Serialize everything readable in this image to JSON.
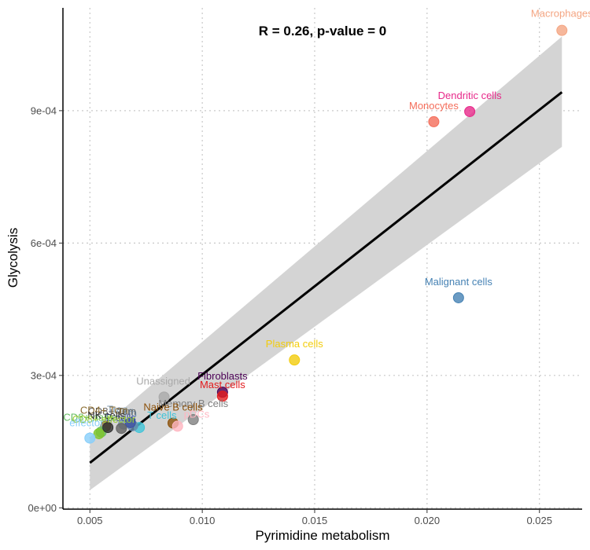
{
  "chart_data": {
    "type": "scatter",
    "xlabel": "Pyrimidine metabolism",
    "ylabel": "Glycolysis",
    "annotation": "R = 0.26, p-value = 0",
    "xlim": [
      0.0038,
      0.0269
    ],
    "ylim": [
      -3e-06,
      0.001133
    ],
    "x_ticks": [
      0.005,
      0.01,
      0.015,
      0.02,
      0.025
    ],
    "x_tick_labels": [
      "0.005",
      "0.010",
      "0.015",
      "0.020",
      "0.025"
    ],
    "y_ticks": [
      0,
      0.0003,
      0.0006,
      0.0009
    ],
    "y_tick_labels": [
      "0e+00",
      "3e-04",
      "6e-04",
      "9e-04"
    ],
    "grid": true,
    "regression": {
      "x": [
        0.005,
        0.026
      ],
      "y": [
        0.000102,
        0.000942
      ],
      "band_lower": [
        4e-05,
        0.000818
      ],
      "band_upper": [
        0.00016,
        0.001068
      ]
    },
    "points": [
      {
        "label": "Macrophages",
        "x": 0.026,
        "y": 0.001082,
        "color": "#F4A582"
      },
      {
        "label": "Dendritic cells",
        "x": 0.0219,
        "y": 0.000898,
        "color": "#E7298A"
      },
      {
        "label": "Monocytes",
        "x": 0.0203,
        "y": 0.000875,
        "color": "#F46D5A"
      },
      {
        "label": "Malignant cells",
        "x": 0.0214,
        "y": 0.000476,
        "color": "#4682B4"
      },
      {
        "label": "Plasma cells",
        "x": 0.0141,
        "y": 0.000335,
        "color": "#F2CC0C"
      },
      {
        "label": "Fibroblasts",
        "x": 0.0109,
        "y": 0.000262,
        "color": "#4B0055"
      },
      {
        "label": "Mast cells",
        "x": 0.0109,
        "y": 0.000253,
        "color": "#E31A1C"
      },
      {
        "label": "Unassigned",
        "x": 0.0083,
        "y": 0.000251,
        "color": "#A9A9A9"
      },
      {
        "label": "Memory B cells",
        "x": 0.0096,
        "y": 0.0002,
        "color": "#7F7F7F"
      },
      {
        "label": "Naive B cells",
        "x": 0.0087,
        "y": 0.000192,
        "color": "#8C510A"
      },
      {
        "label": "pDCs",
        "x": 0.0089,
        "y": 0.000185,
        "color": "#FFB6C1"
      },
      {
        "label": "T cells",
        "x": 0.0072,
        "y": 0.000182,
        "color": "#40C4D8"
      },
      {
        "label": "Tfh",
        "x": 0.0069,
        "y": 0.000186,
        "color": "#6A8EAE"
      },
      {
        "label": "Treg",
        "x": 0.0065,
        "y": 0.00019,
        "color": "#7B9AB5"
      },
      {
        "label": "B cells",
        "x": 0.0068,
        "y": 0.000193,
        "color": "#3A4FA0"
      },
      {
        "label": "CD8+ Tem",
        "x": 0.0064,
        "y": 0.00018,
        "color": "#636363"
      },
      {
        "label": "CD4+ Tcm",
        "x": 0.0057,
        "y": 0.000185,
        "color": "#8C6D31"
      },
      {
        "label": "CD8+ naive",
        "x": 0.0055,
        "y": 0.000172,
        "color": "#66BD63"
      },
      {
        "label": "NK cells",
        "x": 0.0058,
        "y": 0.000182,
        "color": "#2F2F2F"
      },
      {
        "label": "CD8+ effector",
        "x": 0.0054,
        "y": 0.000168,
        "color": "#7FC62B"
      },
      {
        "label": "effector",
        "x": 0.005,
        "y": 0.000158,
        "color": "#87CEFA"
      }
    ],
    "labels": [
      {
        "text": "Macrophages",
        "x": 0.026,
        "y": 0.001082,
        "dx": 0,
        "dy": -17,
        "anchor": "middle",
        "color": "#F4A582"
      },
      {
        "text": "Dendritic cells",
        "x": 0.0219,
        "y": 0.000898,
        "dx": 0,
        "dy": -16,
        "anchor": "middle",
        "color": "#E7298A"
      },
      {
        "text": "Monocytes",
        "x": 0.0203,
        "y": 0.000875,
        "dx": 0,
        "dy": -16,
        "anchor": "middle",
        "color": "#F46D5A"
      },
      {
        "text": "Malignant cells",
        "x": 0.0214,
        "y": 0.000476,
        "dx": 0,
        "dy": -16,
        "anchor": "middle",
        "color": "#4682B4"
      },
      {
        "text": "Plasma cells",
        "x": 0.0141,
        "y": 0.000335,
        "dx": 0,
        "dy": -16,
        "anchor": "middle",
        "color": "#F2CC0C"
      },
      {
        "text": "Fibroblasts",
        "x": 0.0109,
        "y": 0.000262,
        "dx": 0,
        "dy": -16,
        "anchor": "middle",
        "color": "#4B0055"
      },
      {
        "text": "Mast cells",
        "x": 0.0109,
        "y": 0.000253,
        "dx": 0,
        "dy": -10,
        "anchor": "middle",
        "color": "#E31A1C"
      },
      {
        "text": "Unassigned",
        "x": 0.0083,
        "y": 0.000251,
        "dx": -1,
        "dy": -16,
        "anchor": "middle",
        "color": "#A9A9A9"
      },
      {
        "text": "Memory B cells",
        "x": 0.0096,
        "y": 0.0002,
        "dx": 0,
        "dy": -16,
        "anchor": "middle",
        "color": "#7F7F7F"
      },
      {
        "text": "Naive B cells",
        "x": 0.0087,
        "y": 0.000192,
        "dx": 0,
        "dy": -16,
        "anchor": "middle",
        "color": "#8C510A"
      },
      {
        "text": "pDCs",
        "x": 0.0089,
        "y": 0.000185,
        "dx": 8,
        "dy": -11,
        "anchor": "start",
        "color": "#FFB6C1"
      },
      {
        "text": "T cells",
        "x": 0.0072,
        "y": 0.000182,
        "dx": 10,
        "dy": -11,
        "anchor": "start",
        "color": "#40C4D8"
      },
      {
        "text": "Tfh",
        "x": 0.0069,
        "y": 0.000186,
        "dx": -4,
        "dy": -12,
        "anchor": "middle",
        "color": "#6A8EAE"
      },
      {
        "text": "Treg",
        "x": 0.0065,
        "y": 0.00019,
        "dx": -8,
        "dy": -14,
        "anchor": "middle",
        "color": "#7B9AB5"
      },
      {
        "text": "B cells",
        "x": 0.0068,
        "y": 0.000193,
        "dx": -12,
        "dy": -2,
        "anchor": "middle",
        "color": "#3A4FA0"
      },
      {
        "text": "CD8+ Tem",
        "x": 0.0064,
        "y": 0.00018,
        "dx": -12,
        "dy": -17,
        "anchor": "middle",
        "color": "#636363"
      },
      {
        "text": "CD4+ Tcm",
        "x": 0.0057,
        "y": 0.000185,
        "dx": -2,
        "dy": -16,
        "anchor": "middle",
        "color": "#8C6D31"
      },
      {
        "text": "CD8+ naive",
        "x": 0.0055,
        "y": 0.000172,
        "dx": -14,
        "dy": -14,
        "anchor": "middle",
        "color": "#66BD63"
      },
      {
        "text": "NK cells",
        "x": 0.0058,
        "y": 0.000182,
        "dx": -2,
        "dy": -11,
        "anchor": "middle",
        "color": "#2F2F2F"
      },
      {
        "text": "CD8+ effector",
        "x": 0.0054,
        "y": 0.000168,
        "dx": -34,
        "dy": -14,
        "anchor": "start",
        "color": "#9ACD32"
      },
      {
        "text": "effector",
        "x": 0.005,
        "y": 0.000158,
        "dx": -26,
        "dy": -15,
        "anchor": "start",
        "color": "#87CEFA"
      }
    ]
  }
}
